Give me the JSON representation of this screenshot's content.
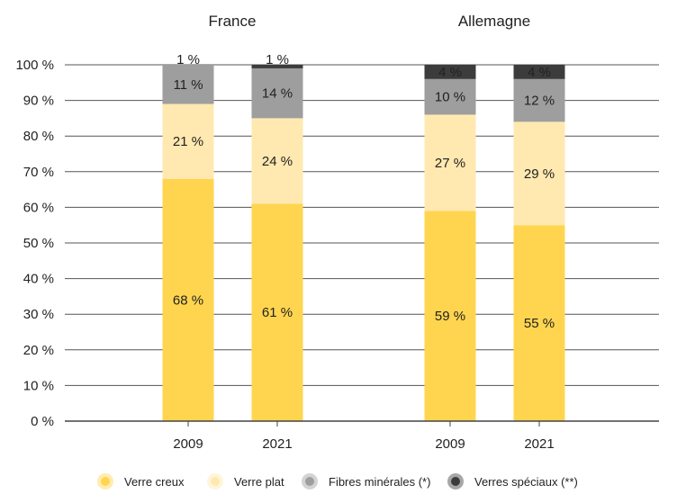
{
  "chart_data": {
    "type": "bar",
    "stacked": true,
    "groups": [
      {
        "title": "France",
        "categories": [
          "2009",
          "2021"
        ]
      },
      {
        "title": "Allemagne",
        "categories": [
          "2009",
          "2021"
        ]
      }
    ],
    "series": [
      {
        "name": "Verre creux",
        "color": "#FFD54F",
        "values": [
          68,
          61,
          59,
          55
        ],
        "labels": [
          "68 %",
          "61 %",
          "59 %",
          "55 %"
        ]
      },
      {
        "name": "Verre plat",
        "color": "#FFE9B0",
        "values": [
          21,
          24,
          27,
          29
        ],
        "labels": [
          "21 %",
          "24 %",
          "27 %",
          "29 %"
        ]
      },
      {
        "name": "Fibres minérales (*)",
        "color": "#9E9E9E",
        "values": [
          11,
          14,
          10,
          12
        ],
        "labels": [
          "11 %",
          "14 %",
          "10 %",
          "12 %"
        ]
      },
      {
        "name": "Verres spéciaux (**)",
        "color": "#3C3C3C",
        "values": [
          1,
          1,
          4,
          4
        ],
        "labels": [
          "1 %",
          "1 %",
          "4 %",
          "4 %"
        ]
      }
    ],
    "yticks": [
      "0 %",
      "10 %",
      "20 %",
      "30 %",
      "40 %",
      "50 %",
      "60 %",
      "70 %",
      "80 %",
      "90 %",
      "100 %"
    ],
    "ylim": [
      0,
      100
    ],
    "grid": true,
    "legend_position": "bottom"
  }
}
